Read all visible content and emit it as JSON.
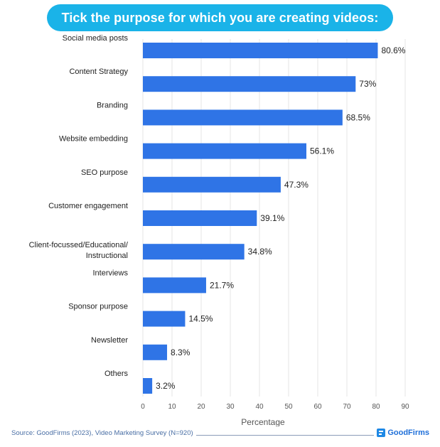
{
  "chart_data": {
    "type": "bar",
    "orientation": "horizontal",
    "title": "Tick the purpose for which you are creating videos:",
    "categories": [
      "Social media posts",
      "Content Strategy",
      "Branding",
      "Website embedding",
      "SEO purpose",
      "Customer engagement",
      "Client-focussed/Educational/ Instructional",
      "Interviews",
      "Sponsor purpose",
      "Newsletter",
      "Others"
    ],
    "values": [
      80.6,
      73,
      68.5,
      56.1,
      47.3,
      39.1,
      34.8,
      21.7,
      14.5,
      8.3,
      3.2
    ],
    "value_labels": [
      "80.6%",
      "73%",
      "68.5%",
      "56.1%",
      "47.3%",
      "39.1%",
      "34.8%",
      "21.7%",
      "14.5%",
      "8.3%",
      "3.2%"
    ],
    "xlabel": "Percentage",
    "ylabel": "",
    "xlim": [
      0,
      90
    ],
    "xticks": [
      0,
      10,
      20,
      30,
      40,
      50,
      60,
      70,
      80,
      90
    ],
    "grid": "vertical",
    "bar_color": "#2f74e6",
    "title_bg_color": "#1ab3e8"
  },
  "footer": {
    "source": "Source: GoodFirms (2023), Video Marketing Survey (N=920)",
    "brand": "GoodFirms"
  }
}
